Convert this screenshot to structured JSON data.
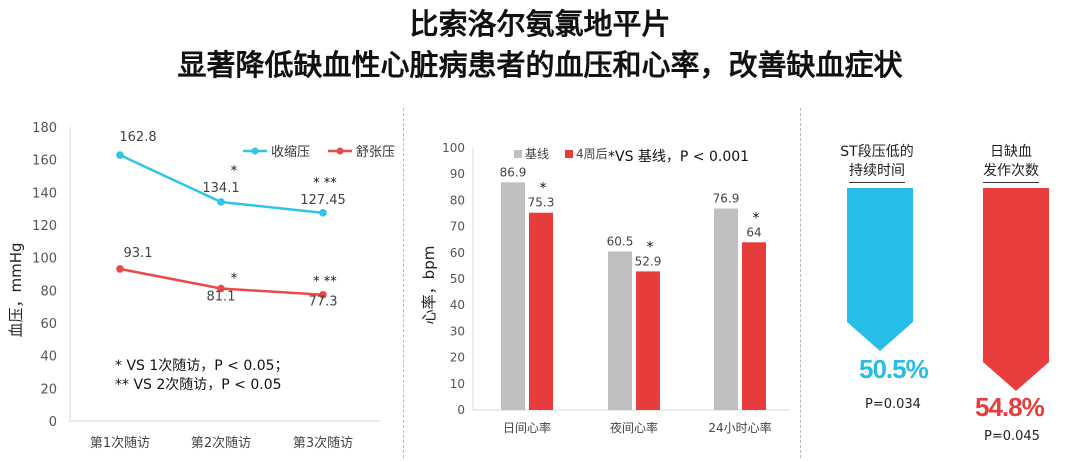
{
  "title_line1": "比索洛尔氨氯地平片",
  "title_line2": "显著降低缺血性心脏病患者的血压和心率，改善缺血症状",
  "colors": {
    "systolic": "#2fc4e8",
    "diastolic": "#e84a4a",
    "baseline_bar": "#bfbfbf",
    "week4_bar": "#e63c3c",
    "axis": "#d9d9d9"
  },
  "chart_data": [
    {
      "type": "line",
      "ylabel": "血压，mmHg",
      "ylim": [
        0,
        180
      ],
      "yticks": [
        0,
        20,
        40,
        60,
        80,
        100,
        120,
        140,
        160,
        180
      ],
      "categories": [
        "第1次随访",
        "第2次随访",
        "第3次随访"
      ],
      "series": [
        {
          "name": "收缩压",
          "values": [
            162.8,
            134.1,
            127.45
          ],
          "labels": [
            "162.8",
            "134.1",
            "127.45"
          ],
          "stars": [
            "",
            "*",
            "* **"
          ]
        },
        {
          "name": "舒张压",
          "values": [
            93.1,
            81.1,
            77.3
          ],
          "labels": [
            "93.1",
            "81.1",
            "77.3"
          ],
          "stars": [
            "",
            "*",
            "*  **"
          ]
        }
      ],
      "legend_position": "top-right",
      "footnote1": "* VS 1次随访，P < 0.05；",
      "footnote2": "** VS 2次随访，P < 0.05"
    },
    {
      "type": "bar",
      "ylabel": "心率，bpm",
      "ylim": [
        0,
        100
      ],
      "yticks": [
        0,
        10,
        20,
        30,
        40,
        50,
        60,
        70,
        80,
        90,
        100
      ],
      "categories": [
        "日间心率",
        "夜间心率",
        "24小时心率"
      ],
      "series": [
        {
          "name": "基线",
          "values": [
            86.9,
            60.5,
            76.9
          ],
          "labels": [
            "86.9",
            "60.5",
            "76.9"
          ]
        },
        {
          "name": "4周后",
          "values": [
            75.3,
            52.9,
            64
          ],
          "labels": [
            "75.3",
            "52.9",
            "64"
          ]
        }
      ],
      "legend_position": "top-left",
      "annotation": "*VS 基线，P < 0.001"
    }
  ],
  "reductions": [
    {
      "label_line1": "ST段压低的",
      "label_line2": "持续时间",
      "percent": "50.5%",
      "p_value": "P=0.034",
      "color": "#27bde6"
    },
    {
      "label_line1": "日缺血",
      "label_line2": "发作次数",
      "percent": "54.8%",
      "p_value": "P=0.045",
      "color": "#e83d3d"
    }
  ]
}
